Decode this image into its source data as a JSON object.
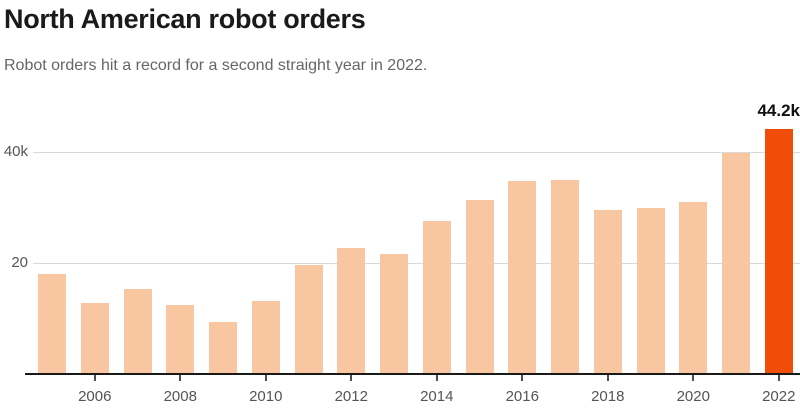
{
  "header": {
    "title": "North American robot orders",
    "subtitle": "Robot orders hit a record for a second straight year in 2022."
  },
  "chart_data": {
    "type": "bar",
    "title": "North American robot orders",
    "subtitle": "Robot orders hit a record for a second straight year in 2022.",
    "categories": [
      "2005",
      "2006",
      "2007",
      "2008",
      "2009",
      "2010",
      "2011",
      "2012",
      "2013",
      "2014",
      "2015",
      "2016",
      "2017",
      "2018",
      "2019",
      "2020",
      "2021",
      "2022"
    ],
    "values": [
      18.0,
      12.7,
      15.2,
      12.3,
      9.2,
      13.0,
      19.5,
      22.7,
      21.5,
      27.5,
      31.3,
      34.7,
      35.0,
      29.5,
      29.9,
      31.0,
      39.8,
      44.2
    ],
    "value_unit": "k",
    "xlabel": "",
    "ylabel": "",
    "ylim": [
      0,
      48
    ],
    "grid": "horizontal",
    "legend_position": "none",
    "y_ticks": [
      {
        "value": 20,
        "label": "20"
      },
      {
        "value": 40,
        "label": "40k"
      }
    ],
    "x_tick_labels": [
      "2006",
      "2008",
      "2010",
      "2012",
      "2014",
      "2016",
      "2018",
      "2020",
      "2022"
    ],
    "highlight_category": "2022",
    "annotation": {
      "text": "44.2k",
      "category": "2022"
    },
    "colors": {
      "bar": "#f9c6a2",
      "highlight_bar": "#f04e08",
      "gridline": "#d9d9d9",
      "axis": "#1a1a1a",
      "tick_label": "#555555",
      "title": "#1a1a1a",
      "subtitle": "#666666"
    }
  }
}
